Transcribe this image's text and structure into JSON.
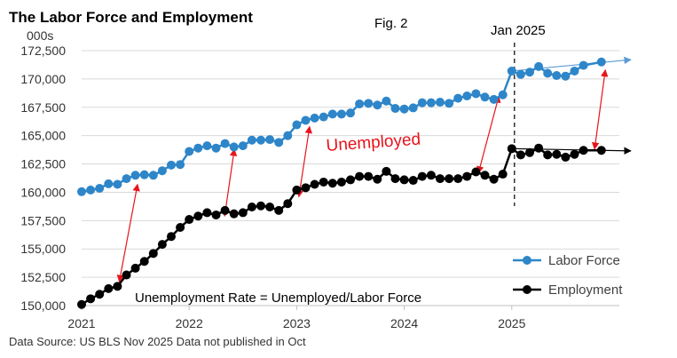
{
  "chart_data": {
    "type": "line",
    "title": "The Labor Force and Employment",
    "unit_label": "000s",
    "figure_label": "Fig. 2",
    "marker_label": "Jan 2025",
    "annotation_unemployed": "Unemployed",
    "annotation_formula": "Unemployment Rate = Unemployed/Labor Force",
    "source": "Data Source: US BLS Nov 2025 Data not published in Oct",
    "ylim": [
      150000,
      172500
    ],
    "yticks": [
      150000,
      152500,
      155000,
      157500,
      160000,
      162500,
      165000,
      167500,
      170000,
      172500
    ],
    "ytick_labels": [
      "150,000",
      "152,500",
      "155,000",
      "157,500",
      "160,000",
      "162,500",
      "165,000",
      "167,500",
      "170,000",
      "172,500"
    ],
    "xticks": [
      2021,
      2022,
      2023,
      2024,
      2025
    ],
    "xtick_labels": [
      "2021",
      "2022",
      "2023",
      "2024",
      "2025"
    ],
    "marker_x": 2025.0,
    "legend_position": "bottom-right",
    "grid": true,
    "colors": {
      "labor_force": "#2e86c9",
      "employment": "#000000",
      "arrows": "#e8131b"
    },
    "series": [
      {
        "name": "Labor Force",
        "x": [
          2021.0,
          2021.0833,
          2021.1667,
          2021.25,
          2021.3333,
          2021.4167,
          2021.5,
          2021.5833,
          2021.6667,
          2021.75,
          2021.8333,
          2021.9167,
          2022.0,
          2022.0833,
          2022.1667,
          2022.25,
          2022.3333,
          2022.4167,
          2022.5,
          2022.5833,
          2022.6667,
          2022.75,
          2022.8333,
          2022.9167,
          2023.0,
          2023.0833,
          2023.1667,
          2023.25,
          2023.3333,
          2023.4167,
          2023.5,
          2023.5833,
          2023.6667,
          2023.75,
          2023.8333,
          2023.9167,
          2024.0,
          2024.0833,
          2024.1667,
          2024.25,
          2024.3333,
          2024.4167,
          2024.5,
          2024.5833,
          2024.6667,
          2024.75,
          2024.8333,
          2024.9167,
          2025.0,
          2025.0833,
          2025.1667,
          2025.25,
          2025.3333,
          2025.4167,
          2025.5,
          2025.5833,
          2025.6667,
          2025.8333
        ],
        "values": [
          160050,
          160200,
          160350,
          160750,
          160700,
          161200,
          161500,
          161550,
          161500,
          161900,
          162400,
          162450,
          163600,
          163900,
          164100,
          163900,
          164300,
          164000,
          164100,
          164600,
          164600,
          164650,
          164400,
          165000,
          165950,
          166350,
          166550,
          166650,
          166900,
          166900,
          167000,
          167800,
          167850,
          167700,
          168050,
          167400,
          167350,
          167450,
          167900,
          167900,
          167950,
          167850,
          168300,
          168500,
          168700,
          168400,
          168200,
          168600,
          170700,
          170400,
          170600,
          171100,
          170500,
          170300,
          170250,
          170700,
          171200,
          171500
        ]
      },
      {
        "name": "Employment",
        "x": [
          2021.0,
          2021.0833,
          2021.1667,
          2021.25,
          2021.3333,
          2021.4167,
          2021.5,
          2021.5833,
          2021.6667,
          2021.75,
          2021.8333,
          2021.9167,
          2022.0,
          2022.0833,
          2022.1667,
          2022.25,
          2022.3333,
          2022.4167,
          2022.5,
          2022.5833,
          2022.6667,
          2022.75,
          2022.8333,
          2022.9167,
          2023.0,
          2023.0833,
          2023.1667,
          2023.25,
          2023.3333,
          2023.4167,
          2023.5,
          2023.5833,
          2023.6667,
          2023.75,
          2023.8333,
          2023.9167,
          2024.0,
          2024.0833,
          2024.1667,
          2024.25,
          2024.3333,
          2024.4167,
          2024.5,
          2024.5833,
          2024.6667,
          2024.75,
          2024.8333,
          2024.9167,
          2025.0,
          2025.0833,
          2025.1667,
          2025.25,
          2025.3333,
          2025.4167,
          2025.5,
          2025.5833,
          2025.6667,
          2025.8333
        ],
        "values": [
          150100,
          150600,
          151000,
          151500,
          151700,
          152700,
          153300,
          153900,
          154600,
          155400,
          156100,
          156900,
          157600,
          157900,
          158200,
          158000,
          158400,
          158100,
          158200,
          158700,
          158800,
          158700,
          158400,
          159000,
          160200,
          160400,
          160700,
          160900,
          160800,
          160900,
          161100,
          161400,
          161400,
          161150,
          161850,
          161200,
          161100,
          161050,
          161400,
          161500,
          161200,
          161200,
          161200,
          161400,
          161800,
          161500,
          161150,
          161600,
          163850,
          163300,
          163500,
          163900,
          163300,
          163350,
          163100,
          163350,
          163700,
          163700
        ]
      }
    ]
  }
}
